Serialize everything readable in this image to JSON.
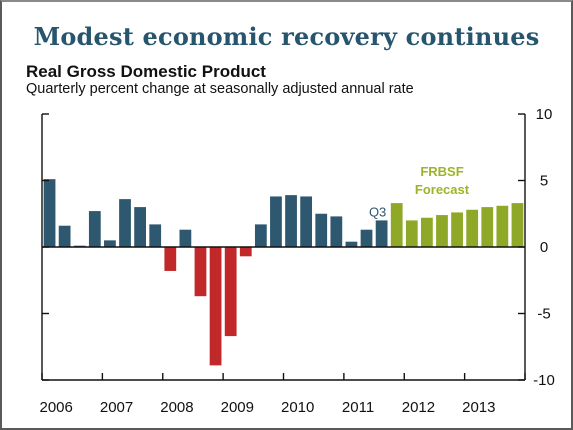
{
  "chart_data": {
    "type": "bar",
    "title": "Modest economic recovery continues",
    "subtitle": "Real Gross Domestic Product",
    "description": "Quarterly percent change at seasonally adjusted annual rate",
    "ylim": [
      -10,
      10
    ],
    "y_ticks": [
      10,
      5,
      0,
      -5,
      -10
    ],
    "y_axis_side": "right",
    "x_tick_labels": [
      "2006",
      "2007",
      "2008",
      "2009",
      "2010",
      "2011",
      "2012",
      "2013"
    ],
    "quarters": [
      "2006Q1",
      "2006Q2",
      "2006Q3",
      "2006Q4",
      "2007Q1",
      "2007Q2",
      "2007Q3",
      "2007Q4",
      "2008Q1",
      "2008Q2",
      "2008Q3",
      "2008Q4",
      "2009Q1",
      "2009Q2",
      "2009Q3",
      "2009Q4",
      "2010Q1",
      "2010Q2",
      "2010Q3",
      "2010Q4",
      "2011Q1",
      "2011Q2",
      "2011Q3",
      "2011Q4",
      "2012Q1",
      "2012Q2",
      "2012Q3",
      "2012Q4",
      "2013Q1",
      "2013Q2",
      "2013Q3",
      "2013Q4"
    ],
    "values": [
      5.1,
      1.6,
      0.1,
      2.7,
      0.5,
      3.6,
      3.0,
      1.7,
      -1.8,
      1.3,
      -3.7,
      -8.9,
      -6.7,
      -0.7,
      1.7,
      3.8,
      3.9,
      3.8,
      2.5,
      2.3,
      0.4,
      1.3,
      2.0,
      3.3,
      2.0,
      2.2,
      2.4,
      2.6,
      2.8,
      3.0,
      3.1,
      3.3
    ],
    "series_kind": [
      "actual",
      "actual",
      "actual",
      "actual",
      "actual",
      "actual",
      "actual",
      "actual",
      "actual",
      "actual",
      "actual",
      "actual",
      "actual",
      "actual",
      "actual",
      "actual",
      "actual",
      "actual",
      "actual",
      "actual",
      "actual",
      "actual",
      "actual",
      "forecast",
      "forecast",
      "forecast",
      "forecast",
      "forecast",
      "forecast",
      "forecast",
      "forecast",
      "forecast"
    ],
    "annotations": [
      {
        "text": "Q3",
        "quarter_index": 22
      },
      {
        "text": "FRBSF",
        "quarter_index": 26
      },
      {
        "text": "Forecast",
        "quarter_index": 26
      }
    ],
    "grid": false,
    "colors": {
      "actual_positive": "#2e5770",
      "actual_negative": "#c0282a",
      "forecast": "#8fa827",
      "forecast_label": "#9fb32a",
      "title": "#27556e",
      "axis": "#111111"
    }
  }
}
